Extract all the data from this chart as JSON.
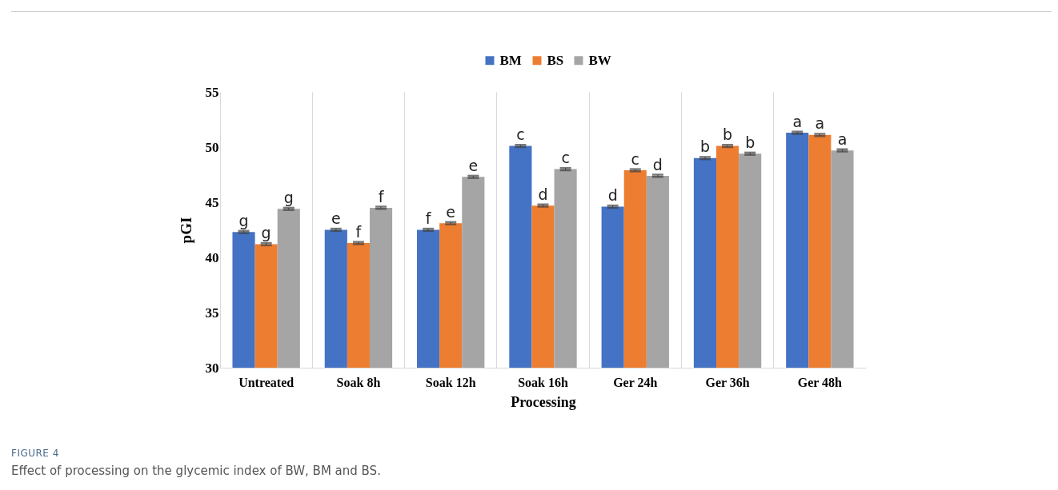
{
  "chart_data": {
    "type": "bar",
    "xlabel": "Processing",
    "ylabel": "pGI",
    "categories": [
      "Untreated",
      "Soak 8h",
      "Soak 12h",
      "Soak 16h",
      "Ger 24h",
      "Ger 36h",
      "Ger 48h"
    ],
    "series": [
      {
        "name": "BM",
        "color": "#4472c4",
        "values": [
          42.3,
          42.5,
          42.5,
          50.1,
          44.6,
          49.0,
          51.3
        ],
        "errors": [
          0.1,
          0.1,
          0.1,
          0.1,
          0.1,
          0.1,
          0.1
        ],
        "value_labels": [
          "g",
          "e",
          "f",
          "c",
          "d",
          "b",
          "a"
        ]
      },
      {
        "name": "BS",
        "color": "#ed7d31",
        "values": [
          41.2,
          41.3,
          43.1,
          44.7,
          47.9,
          50.1,
          51.1
        ],
        "errors": [
          0.1,
          0.1,
          0.1,
          0.1,
          0.1,
          0.1,
          0.1
        ],
        "value_labels": [
          "g",
          "f",
          "e",
          "d",
          "c",
          "b",
          "a"
        ]
      },
      {
        "name": "BW",
        "color": "#a5a5a5",
        "values": [
          44.4,
          44.5,
          47.3,
          48.0,
          47.4,
          49.4,
          49.7
        ],
        "errors": [
          0.1,
          0.1,
          0.1,
          0.1,
          0.1,
          0.1,
          0.1
        ],
        "value_labels": [
          "g",
          "f",
          "e",
          "c",
          "d",
          "b",
          "a"
        ]
      }
    ],
    "ylim": [
      30,
      55
    ],
    "yticks": [
      30,
      35,
      40,
      45,
      50,
      55
    ],
    "grid": "x",
    "legend": "top",
    "annotations": [
      "FIGURE 4",
      "Effect of processing on the glycemic index of BW, BM and BS."
    ]
  }
}
